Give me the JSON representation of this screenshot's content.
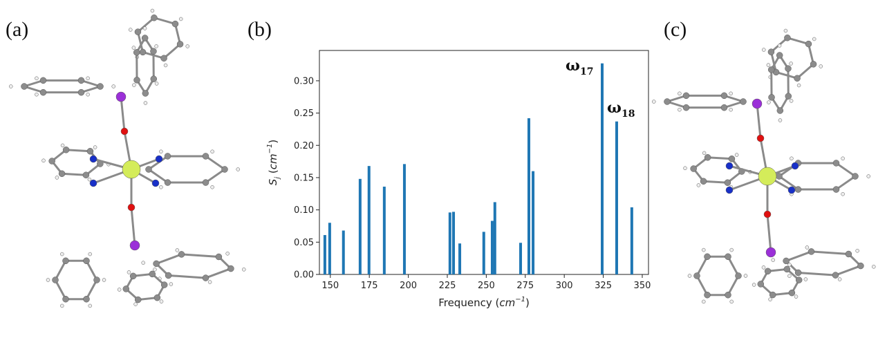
{
  "panel_labels": [
    "(a)",
    "(b)",
    "(c)"
  ],
  "chart_data": {
    "type": "bar",
    "xlabel": {
      "main": "Frequency (",
      "unit": "cm",
      "sup": "−1",
      "close": ")"
    },
    "ylabel": {
      "main": "S",
      "sub": "j",
      "open": " (",
      "unit": "cm",
      "sup": "−1",
      "close": ")"
    },
    "color": "#1f77b4",
    "x": [
      146.5,
      149.6,
      158.4,
      169.1,
      174.8,
      184.6,
      197.5,
      226.7,
      229.0,
      233.0,
      248.4,
      253.8,
      255.5,
      272.0,
      277.3,
      280.0,
      324.3,
      333.6,
      343.3
    ],
    "values": [
      0.061,
      0.08,
      0.068,
      0.148,
      0.168,
      0.136,
      0.171,
      0.096,
      0.097,
      0.048,
      0.066,
      0.083,
      0.112,
      0.049,
      0.242,
      0.16,
      0.327,
      0.237,
      0.104
    ],
    "xlim": [
      143,
      354
    ],
    "ylim": [
      0,
      0.347
    ],
    "xticks": [
      150,
      175,
      200,
      225,
      250,
      275,
      300,
      325,
      350
    ],
    "yticks": [
      {
        "value": 0,
        "label": "0.00"
      },
      {
        "value": 0.05,
        "label": "0.05"
      },
      {
        "value": 0.1,
        "label": "0.10"
      },
      {
        "value": 0.15,
        "label": "0.15"
      },
      {
        "value": 0.2,
        "label": "0.20"
      },
      {
        "value": 0.25,
        "label": "0.25"
      },
      {
        "value": 0.3,
        "label": "0.30"
      }
    ],
    "annotations": [
      {
        "text": "ω",
        "sub": "17"
      },
      {
        "text": "ω",
        "sub": "18"
      }
    ]
  }
}
